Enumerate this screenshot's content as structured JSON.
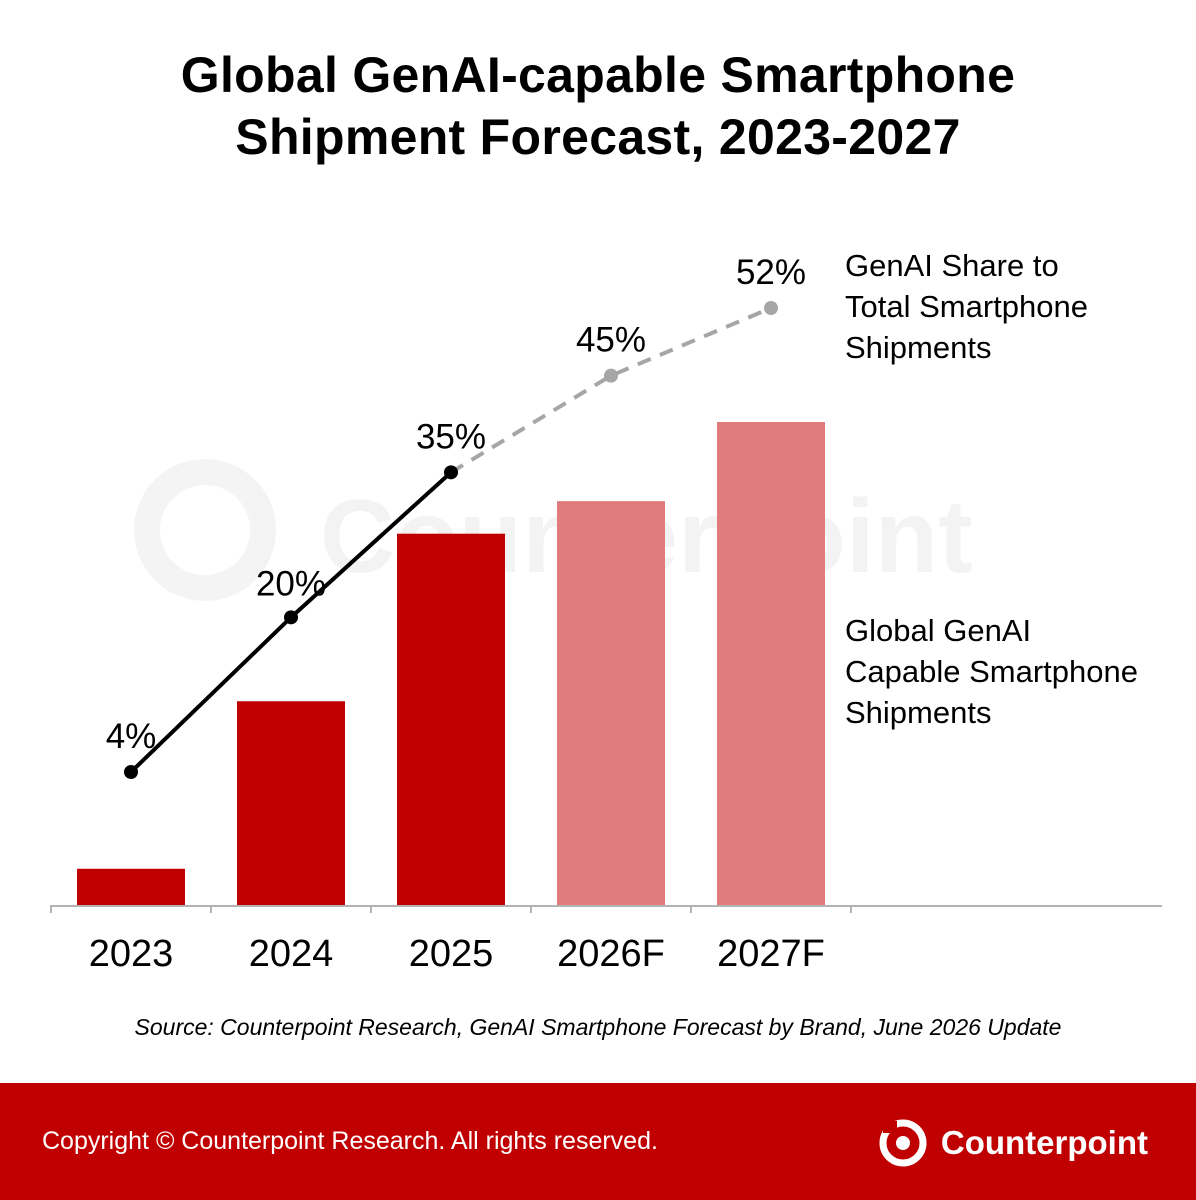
{
  "title": {
    "line1": "Global GenAI-capable Smartphone",
    "line2": "Shipment Forecast, 2023-2027"
  },
  "chart_data": {
    "type": "bar",
    "categories": [
      "2023",
      "2024",
      "2025",
      "2026F",
      "2027F"
    ],
    "series": [
      {
        "name": "Global GenAI Capable Smartphone Shipments",
        "label_lines": [
          "Global GenAI",
          "Capable Smartphone",
          "Shipments"
        ],
        "values": [
          0.08,
          0.44,
          0.8,
          0.87,
          1.04
        ],
        "forecast": [
          false,
          false,
          false,
          true,
          true
        ],
        "color": "#c00000",
        "forecast_color": "#e07c7c"
      },
      {
        "name": "GenAI Share to Total Smartphone Shipments",
        "label_lines": [
          "GenAI Share to",
          "Total Smartphone",
          "Shipments"
        ],
        "type": "line",
        "values": [
          4,
          20,
          35,
          45,
          52
        ],
        "data_labels": [
          "4%",
          "20%",
          "35%",
          "45%",
          "52%"
        ],
        "forecast": [
          false,
          false,
          false,
          true,
          true
        ],
        "color": "#000000",
        "forecast_color": "#a6a6a6"
      }
    ],
    "y_axis_visible": false,
    "grid": false
  },
  "source": "Source: Counterpoint Research, GenAI Smartphone Forecast by Brand, June 2026 Update",
  "footer": {
    "copyright": "Copyright © Counterpoint Research. All rights reserved.",
    "brand": "Counterpoint",
    "background_color": "#c00000"
  },
  "watermark": "Counterpoint"
}
